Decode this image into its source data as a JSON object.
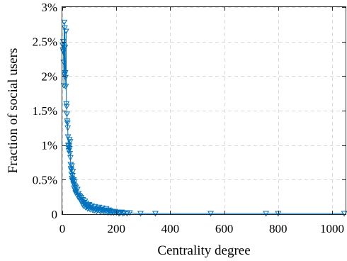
{
  "chart_data": {
    "type": "line",
    "title": "",
    "xlabel": "Centrality degree",
    "ylabel": "Fraction of social users",
    "xlim": [
      0,
      1050
    ],
    "ylim": [
      0,
      3
    ],
    "x_ticks": [
      {
        "value": 0,
        "label": "0"
      },
      {
        "value": 200,
        "label": "200"
      },
      {
        "value": 400,
        "label": "400"
      },
      {
        "value": 600,
        "label": "600"
      },
      {
        "value": 800,
        "label": "800"
      },
      {
        "value": 1000,
        "label": "1000"
      }
    ],
    "y_ticks": [
      {
        "value": 0,
        "label": "0"
      },
      {
        "value": 0.5,
        "label": "0.5%"
      },
      {
        "value": 1,
        "label": "1%"
      },
      {
        "value": 1.5,
        "label": "1.5%"
      },
      {
        "value": 2,
        "label": "2%"
      },
      {
        "value": 2.5,
        "label": "2.5%"
      },
      {
        "value": 3,
        "label": "3%"
      }
    ],
    "grid": true,
    "marker": "triangle-down",
    "colors": {
      "series": "#0072BD",
      "grid": "#d9d9d9",
      "axes": "#262626"
    },
    "series": [
      {
        "x": [
          1,
          2,
          3,
          4,
          5,
          6,
          7,
          8,
          9,
          10,
          11,
          12,
          13,
          14,
          15,
          16,
          17,
          18,
          19,
          20,
          21,
          22,
          23,
          24,
          25,
          26,
          27,
          28,
          29,
          30,
          31,
          32,
          33,
          34,
          35,
          36,
          37,
          38,
          39,
          40,
          41,
          42,
          43,
          44,
          45,
          46,
          47,
          48,
          49,
          50,
          52,
          54,
          56,
          58,
          60,
          62,
          64,
          66,
          68,
          70,
          72,
          74,
          76,
          78,
          80,
          82,
          84,
          86,
          88,
          90,
          92,
          94,
          96,
          98,
          100,
          103,
          106,
          109,
          112,
          115,
          118,
          121,
          124,
          127,
          130,
          133,
          136,
          139,
          142,
          145,
          148,
          151,
          154,
          157,
          160,
          163,
          166,
          169,
          172,
          175,
          178,
          181,
          184,
          187,
          190,
          195,
          200,
          205,
          210,
          215,
          220,
          225,
          230,
          240,
          250,
          290,
          345,
          550,
          755,
          800,
          1045
        ],
        "y": [
          2.45,
          2.38,
          2.5,
          2.35,
          2.2,
          1.86,
          2.78,
          2.02,
          2.7,
          2.42,
          2.05,
          1.98,
          1.85,
          2.65,
          1.6,
          1.56,
          1.45,
          1.35,
          1.32,
          1.25,
          1.12,
          1.0,
          0.96,
          0.92,
          0.99,
          1.08,
          0.95,
          0.88,
          1.05,
          0.82,
          0.72,
          0.66,
          0.64,
          0.58,
          0.7,
          0.52,
          0.49,
          0.56,
          0.62,
          0.48,
          0.44,
          0.5,
          0.43,
          0.38,
          0.47,
          0.36,
          0.41,
          0.34,
          0.31,
          0.39,
          0.33,
          0.28,
          0.36,
          0.25,
          0.3,
          0.27,
          0.22,
          0.26,
          0.2,
          0.24,
          0.18,
          0.15,
          0.21,
          0.12,
          0.17,
          0.14,
          0.19,
          0.1,
          0.16,
          0.12,
          0.11,
          0.08,
          0.13,
          0.09,
          0.14,
          0.07,
          0.1,
          0.12,
          0.06,
          0.09,
          0.05,
          0.11,
          0.07,
          0.04,
          0.08,
          0.06,
          0.1,
          0.05,
          0.03,
          0.07,
          0.09,
          0.04,
          0.06,
          0.03,
          0.05,
          0.08,
          0.04,
          0.02,
          0.06,
          0.03,
          0.05,
          0.02,
          0.04,
          0.03,
          0.02,
          0.04,
          0.02,
          0.03,
          0.01,
          0.02,
          0.03,
          0.01,
          0.02,
          0.01,
          0.02,
          0.01,
          0.01,
          0.01,
          0.01,
          0.01,
          0.01
        ]
      }
    ]
  }
}
